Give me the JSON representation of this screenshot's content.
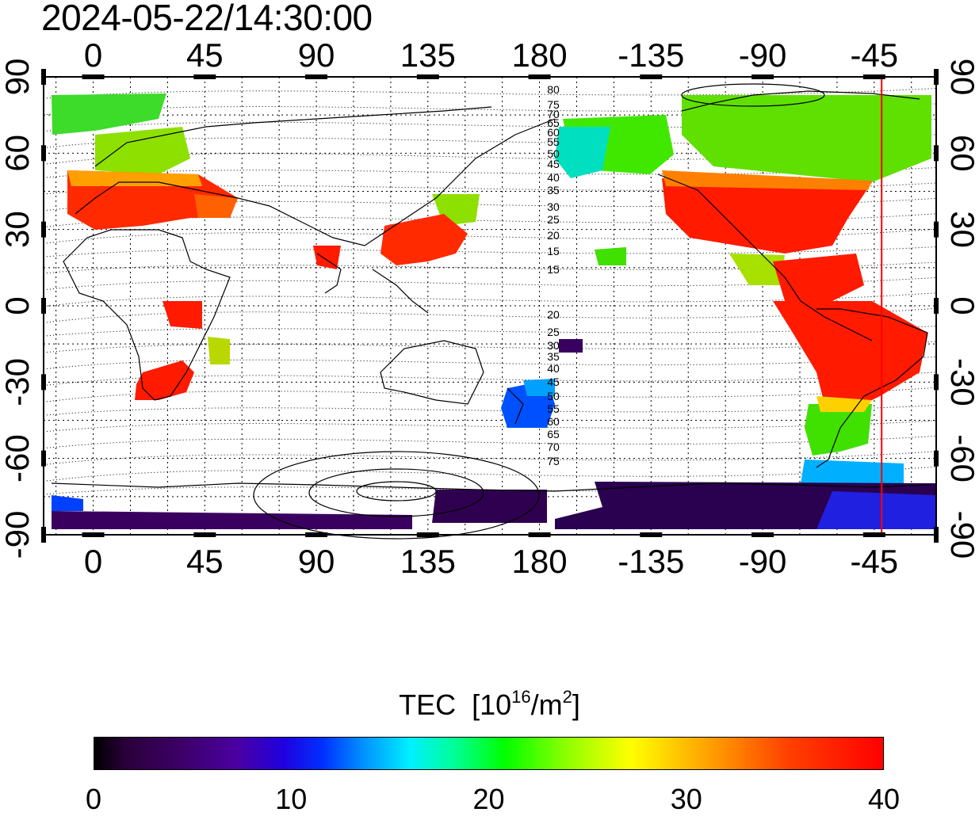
{
  "timestamp": "2024-05-22/14:30:00",
  "map": {
    "x_ticks_top": [
      "0",
      "45",
      "90",
      "135",
      "180",
      "-135",
      "-90",
      "-45"
    ],
    "x_ticks_bottom": [
      "0",
      "45",
      "90",
      "135",
      "180",
      "-135",
      "-90",
      "-45"
    ],
    "y_ticks_left": [
      "90",
      "60",
      "30",
      "0",
      "-30",
      "-60",
      "-90"
    ],
    "y_ticks_right": [
      "90",
      "60",
      "30",
      "0",
      "-30",
      "-60",
      "-90"
    ],
    "x_tick_values": [
      0,
      45,
      90,
      135,
      180,
      -135,
      -90,
      -45
    ],
    "y_tick_values": [
      90,
      60,
      30,
      0,
      -30,
      -60,
      -90
    ],
    "lon_range": [
      -20,
      340
    ],
    "lat_range": [
      -90,
      90
    ],
    "grid": true,
    "terminator_lon": -42,
    "contour_labels": [
      "80",
      "75",
      "70",
      "65",
      "60",
      "55",
      "50",
      "45",
      "40",
      "35",
      "30",
      "25",
      "20",
      "15",
      "15",
      "20",
      "25",
      "30",
      "35",
      "40",
      "45",
      "50",
      "55",
      "60",
      "65",
      "70",
      "75"
    ],
    "colors": {
      "terminator": "#ff0000",
      "high": "#ff1a00",
      "mid": "#00e000",
      "low": "#0040ff",
      "very_low": "#3a0060"
    }
  },
  "colorbar": {
    "title": "TEC",
    "unit_prefix": "[10",
    "unit_exp": "16",
    "unit_mid": "/m",
    "unit_exp2": "2",
    "unit_suffix": "]",
    "ticks": [
      "0",
      "10",
      "20",
      "30",
      "40"
    ],
    "tick_values": [
      0,
      10,
      20,
      30,
      40
    ],
    "range": [
      0,
      40
    ]
  }
}
